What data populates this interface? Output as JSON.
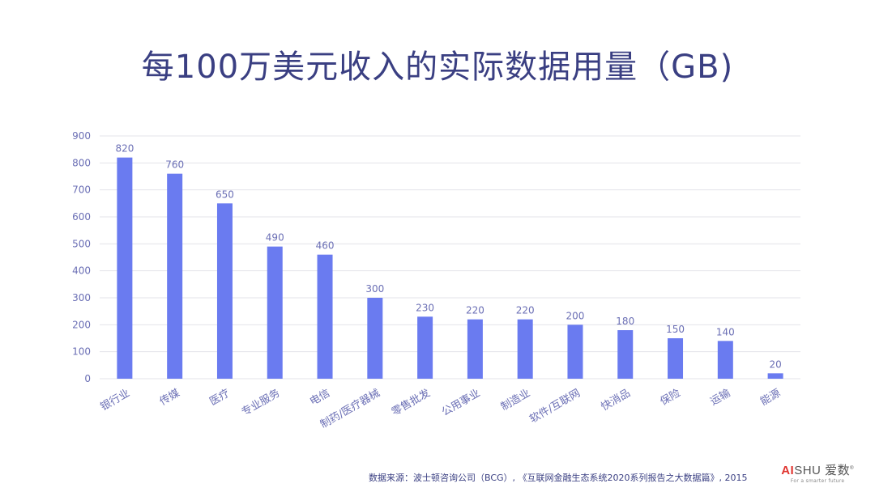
{
  "title": "每100万美元收入的实际数据用量（GB)",
  "source": "数据来源：波士顿咨询公司（BCG）, 《互联网金融生态系统2020系列报告之大数据篇》, 2015",
  "logo": {
    "ai": "AI",
    "shu": "SHU",
    "cn": "爱数",
    "reg": "®",
    "tagline": "For a smarter future"
  },
  "colors": {
    "bar": "#6a7bf0",
    "axis_text": "#6b6fb5",
    "grid": "#e3e3ea",
    "title": "#3a3f82"
  },
  "chart_data": {
    "type": "bar",
    "categories": [
      "银行业",
      "传媒",
      "医疗",
      "专业服务",
      "电信",
      "制药/医疗器械",
      "零售批发",
      "公用事业",
      "制造业",
      "软件/互联网",
      "快消品",
      "保险",
      "运输",
      "能源"
    ],
    "values": [
      820,
      760,
      650,
      490,
      460,
      300,
      230,
      220,
      220,
      200,
      180,
      150,
      140,
      20
    ],
    "ylim": [
      0,
      900
    ],
    "yticks": [
      0,
      100,
      200,
      300,
      400,
      500,
      600,
      700,
      800,
      900
    ],
    "grid": true,
    "data_labels": true
  }
}
